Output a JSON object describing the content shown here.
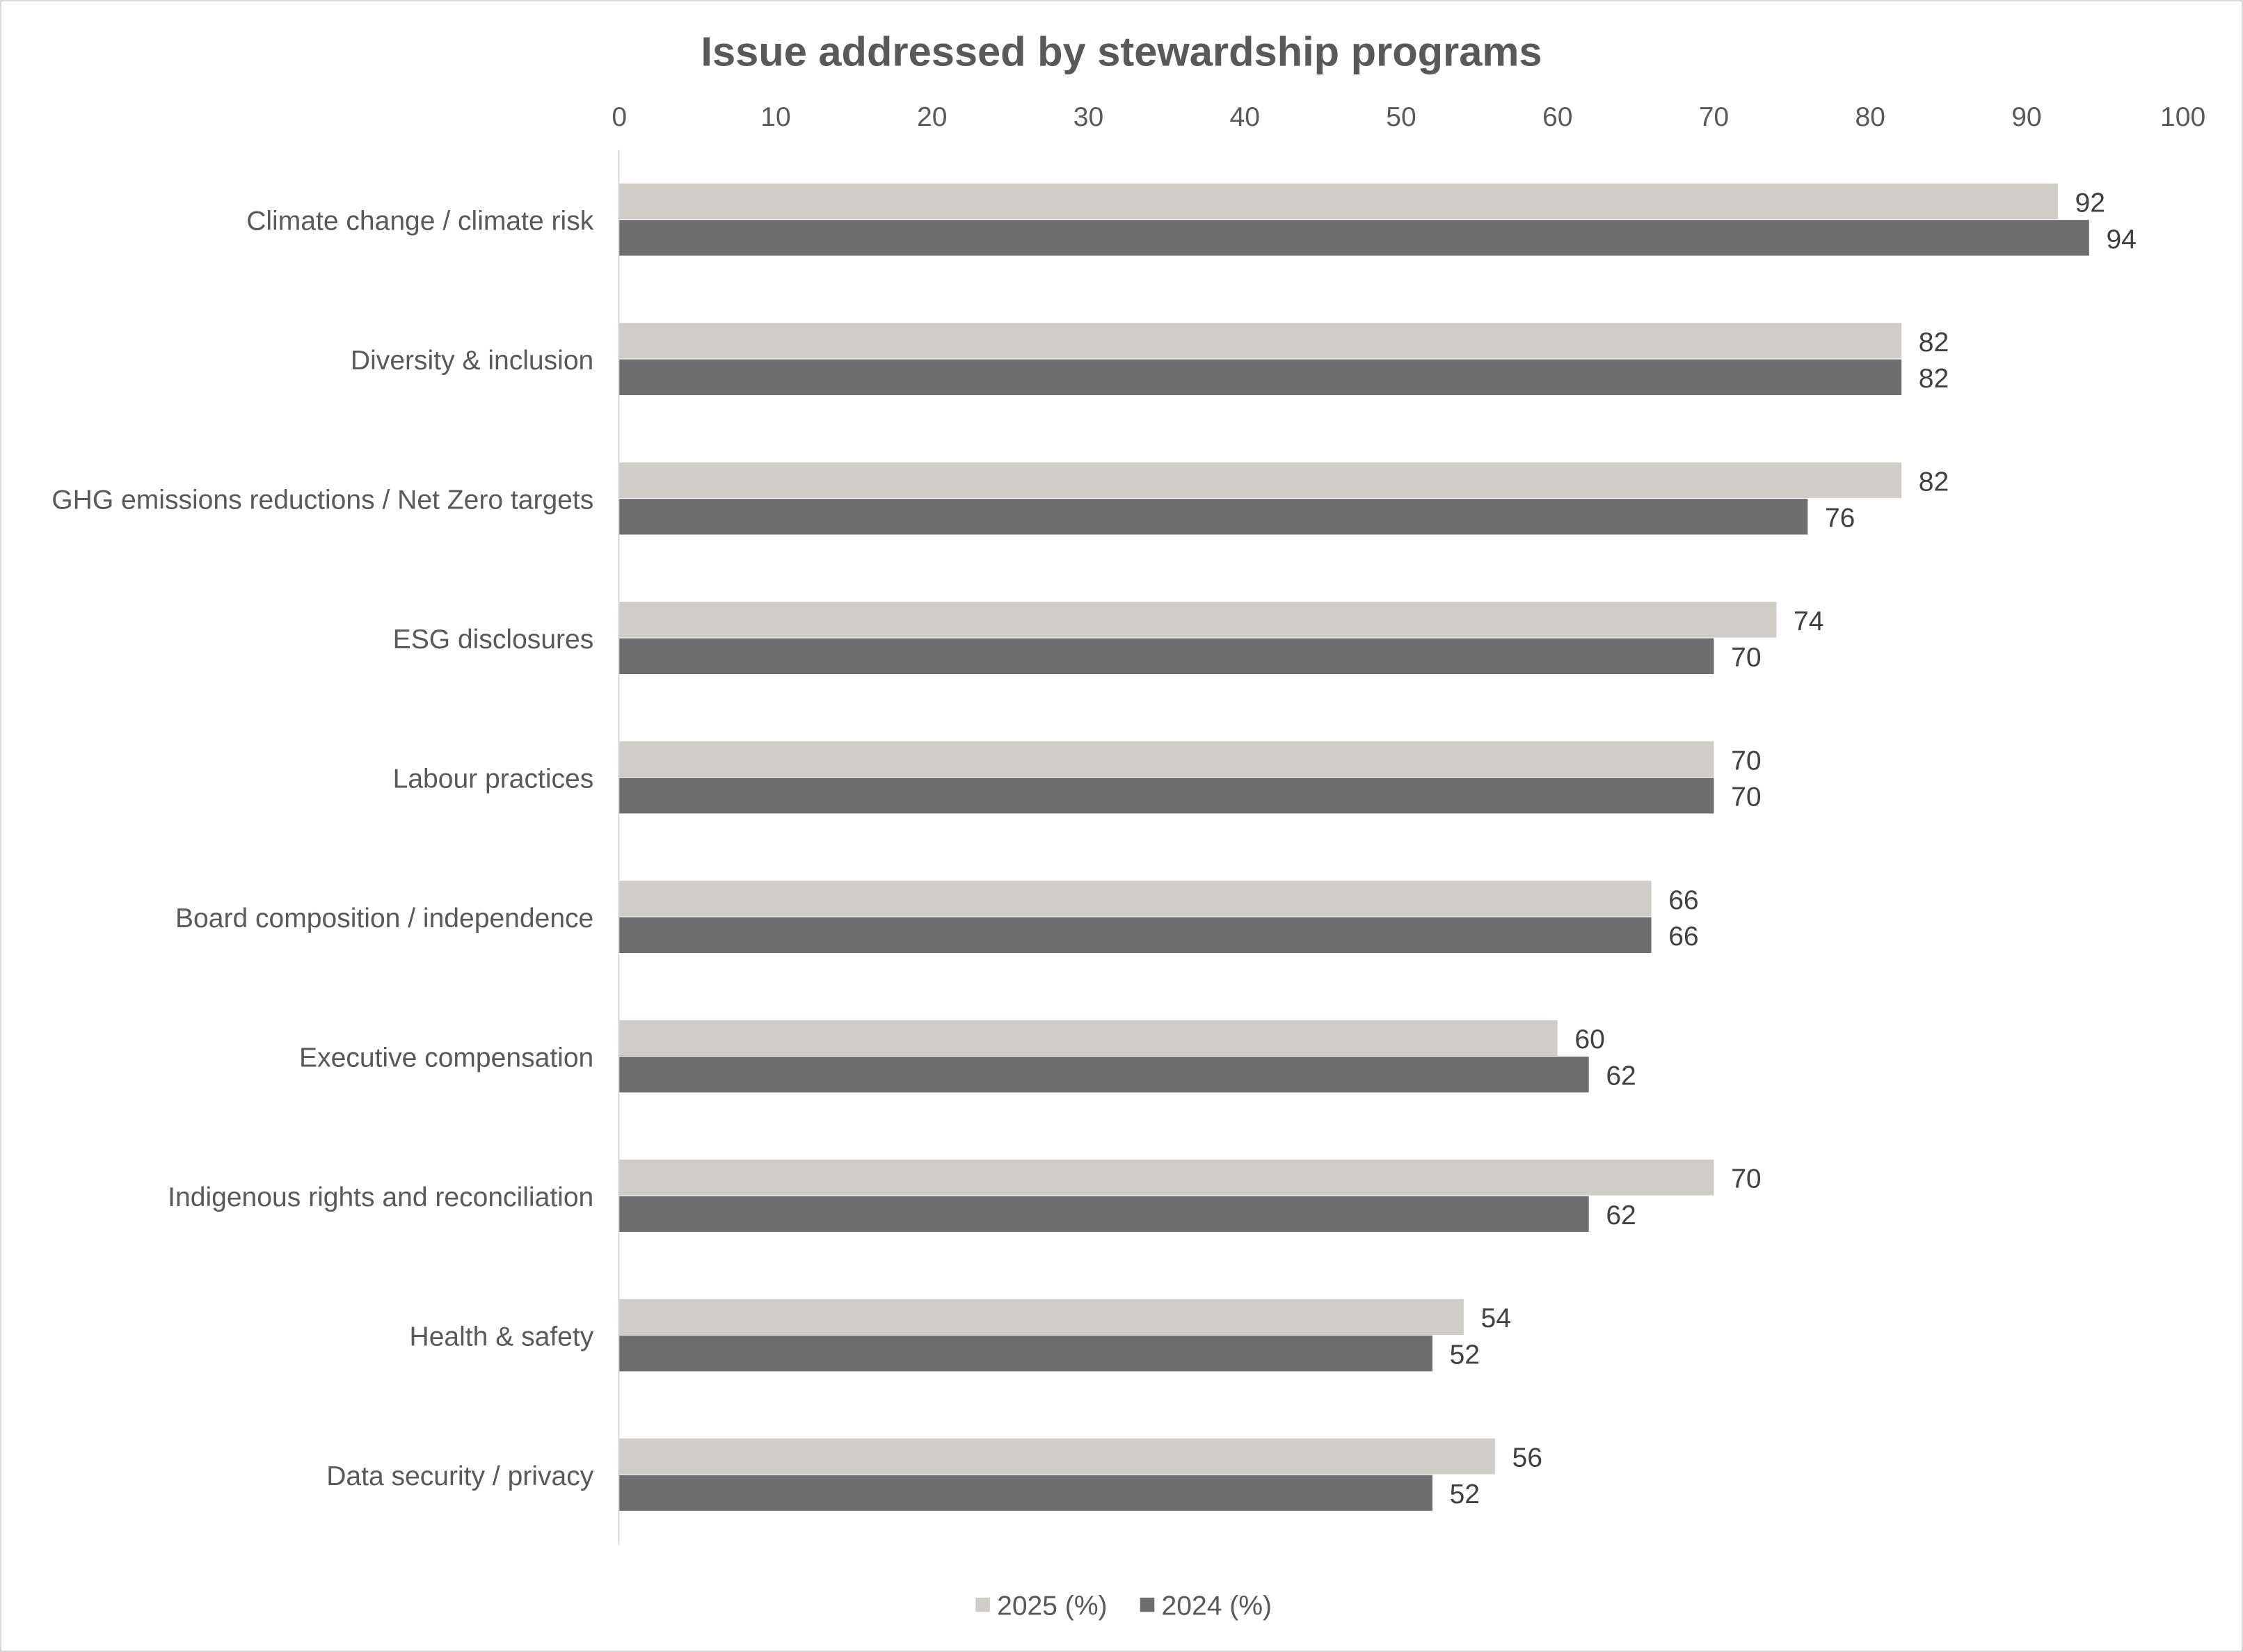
{
  "chart_data": {
    "type": "bar",
    "orientation": "horizontal",
    "title": "Issue addressed by stewardship programs",
    "xlabel": "",
    "ylabel": "",
    "xlim": [
      0,
      100
    ],
    "x_ticks": [
      0,
      10,
      20,
      30,
      40,
      50,
      60,
      70,
      80,
      90,
      100
    ],
    "x_axis_position": "top",
    "grid": false,
    "legend_position": "bottom",
    "data_labels": true,
    "categories": [
      "Climate change / climate risk",
      "Diversity & inclusion",
      "GHG emissions reductions / Net Zero targets",
      "ESG disclosures",
      "Labour practices",
      "Board composition / independence",
      "Executive compensation",
      "Indigenous rights and reconciliation",
      "Health & safety",
      "Data security / privacy"
    ],
    "series": [
      {
        "name": "2025 (%)",
        "color": "#D0CDC8",
        "values": [
          92,
          82,
          82,
          74,
          70,
          66,
          60,
          70,
          54,
          56
        ]
      },
      {
        "name": "2024 (%)",
        "color": "#6E6E70",
        "values": [
          94,
          82,
          76,
          70,
          70,
          66,
          62,
          62,
          52,
          52
        ]
      }
    ]
  }
}
